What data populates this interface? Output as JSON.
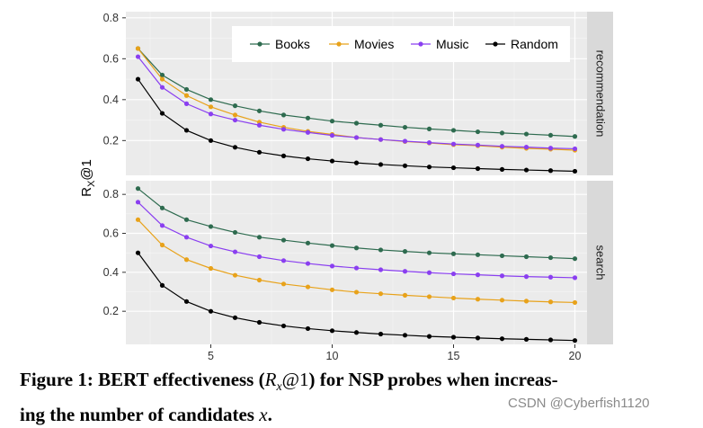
{
  "chart_data": {
    "type": "line",
    "ylabel": "R",
    "ylabel_sub": "X",
    "ylabel_suffix": "@1",
    "x": [
      2,
      3,
      4,
      5,
      6,
      7,
      8,
      9,
      10,
      11,
      12,
      13,
      14,
      15,
      16,
      17,
      18,
      19,
      20
    ],
    "xlim": [
      1.5,
      20.5
    ],
    "xticks": [
      5,
      10,
      15,
      20
    ],
    "ylim": [
      0.03,
      0.83
    ],
    "yticks": [
      0.2,
      0.4,
      0.6,
      0.8
    ],
    "legend_position": "top-right",
    "colors": {
      "Books": "#2e6b4f",
      "Movies": "#e8a21a",
      "Music": "#8a3ff0",
      "Random": "#000000"
    },
    "panels": [
      {
        "strip": "recommendation",
        "ylim": [
          0.03,
          0.83
        ],
        "series": [
          {
            "name": "Books",
            "values": [
              0.65,
              0.52,
              0.45,
              0.4,
              0.37,
              0.345,
              0.325,
              0.31,
              0.295,
              0.285,
              0.275,
              0.265,
              0.257,
              0.25,
              0.243,
              0.237,
              0.232,
              0.226,
              0.22
            ]
          },
          {
            "name": "Movies",
            "values": [
              0.65,
              0.5,
              0.42,
              0.365,
              0.325,
              0.29,
              0.265,
              0.245,
              0.23,
              0.215,
              0.205,
              0.195,
              0.188,
              0.18,
              0.175,
              0.168,
              0.162,
              0.158,
              0.153
            ]
          },
          {
            "name": "Music",
            "values": [
              0.61,
              0.46,
              0.38,
              0.33,
              0.3,
              0.275,
              0.255,
              0.24,
              0.225,
              0.215,
              0.205,
              0.197,
              0.19,
              0.183,
              0.178,
              0.172,
              0.168,
              0.163,
              0.16
            ]
          },
          {
            "name": "Random",
            "values": [
              0.5,
              0.333,
              0.25,
              0.2,
              0.167,
              0.143,
              0.125,
              0.111,
              0.1,
              0.091,
              0.083,
              0.077,
              0.071,
              0.067,
              0.063,
              0.059,
              0.056,
              0.053,
              0.05
            ]
          }
        ]
      },
      {
        "strip": "search",
        "ylim": [
          0.03,
          0.87
        ],
        "series": [
          {
            "name": "Books",
            "values": [
              0.83,
              0.73,
              0.67,
              0.635,
              0.605,
              0.58,
              0.565,
              0.55,
              0.537,
              0.525,
              0.515,
              0.507,
              0.5,
              0.495,
              0.49,
              0.485,
              0.48,
              0.475,
              0.47
            ]
          },
          {
            "name": "Movies",
            "values": [
              0.67,
              0.54,
              0.465,
              0.42,
              0.385,
              0.36,
              0.34,
              0.325,
              0.31,
              0.298,
              0.29,
              0.282,
              0.275,
              0.268,
              0.262,
              0.257,
              0.252,
              0.248,
              0.245
            ]
          },
          {
            "name": "Music",
            "values": [
              0.76,
              0.64,
              0.58,
              0.535,
              0.505,
              0.48,
              0.46,
              0.445,
              0.432,
              0.422,
              0.413,
              0.405,
              0.398,
              0.392,
              0.387,
              0.382,
              0.378,
              0.375,
              0.372
            ]
          },
          {
            "name": "Random",
            "values": [
              0.5,
              0.333,
              0.25,
              0.2,
              0.167,
              0.143,
              0.125,
              0.111,
              0.1,
              0.091,
              0.083,
              0.077,
              0.071,
              0.067,
              0.063,
              0.059,
              0.056,
              0.053,
              0.05
            ]
          }
        ]
      }
    ]
  },
  "caption": {
    "part1": "Figure 1: BERT effectiveness (",
    "var_R": "R",
    "var_sub": "x",
    "at1": "@1",
    "part2": ") for NSP probes when increas-",
    "line2": "ing the number of candidates ",
    "var_x": "x",
    "end": "."
  },
  "watermark": "CSDN @Cyberfish1120"
}
